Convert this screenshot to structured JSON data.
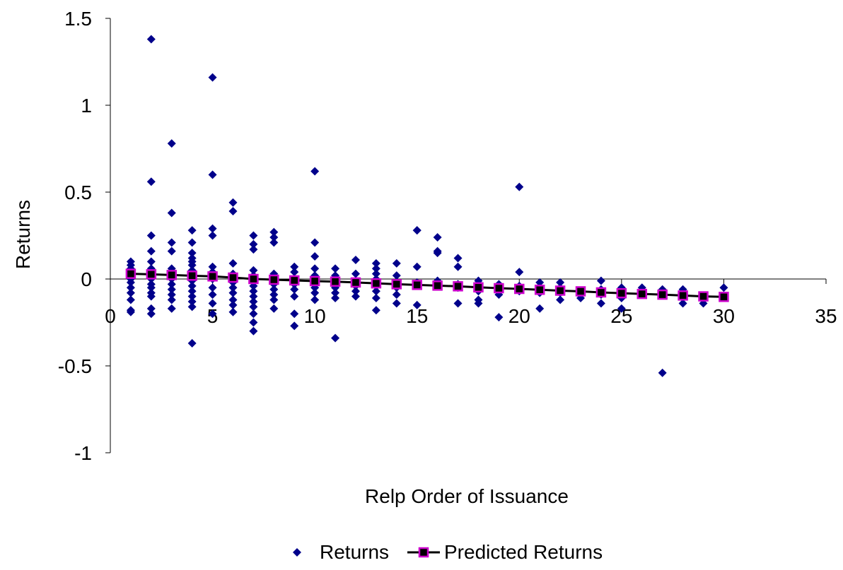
{
  "chart_data": {
    "type": "scatter",
    "title": "",
    "xlabel": "Relp Order of Issuance",
    "ylabel": "Returns",
    "xlim": [
      0,
      35
    ],
    "ylim": [
      -1,
      1.5
    ],
    "x_ticks": [
      0,
      5,
      10,
      15,
      20,
      25,
      30,
      35
    ],
    "y_ticks": [
      -1,
      -0.5,
      0,
      0.5,
      1,
      1.5
    ],
    "x_tick_labels": [
      "0",
      "5",
      "10",
      "15",
      "20",
      "25",
      "30",
      "35"
    ],
    "y_tick_labels": [
      "-1",
      "-0.5",
      "0",
      "0.5",
      "1",
      "1.5"
    ],
    "grid": false,
    "legend_position": "bottom",
    "legend": [
      "Returns",
      "Predicted Returns"
    ],
    "colors": {
      "scatter": "#00008B",
      "line": "#000000",
      "marker_border": "#CC00CC",
      "marker_fill": "#000000",
      "axis": "#000000"
    },
    "series": [
      {
        "name": "Returns",
        "type": "scatter",
        "marker": "diamond",
        "points": [
          [
            1,
            0.1
          ],
          [
            1,
            0.08
          ],
          [
            1,
            0.06
          ],
          [
            1,
            0.04
          ],
          [
            1,
            0.02
          ],
          [
            1,
            0.0
          ],
          [
            1,
            -0.02
          ],
          [
            1,
            -0.05
          ],
          [
            1,
            -0.08
          ],
          [
            1,
            -0.12
          ],
          [
            1,
            -0.18
          ],
          [
            1,
            -0.19
          ],
          [
            2,
            1.38
          ],
          [
            2,
            0.56
          ],
          [
            2,
            0.25
          ],
          [
            2,
            0.16
          ],
          [
            2,
            0.1
          ],
          [
            2,
            0.06
          ],
          [
            2,
            0.03
          ],
          [
            2,
            0.0
          ],
          [
            2,
            -0.03
          ],
          [
            2,
            -0.05
          ],
          [
            2,
            -0.08
          ],
          [
            2,
            -0.1
          ],
          [
            2,
            -0.17
          ],
          [
            2,
            -0.2
          ],
          [
            3,
            0.78
          ],
          [
            3,
            0.38
          ],
          [
            3,
            0.21
          ],
          [
            3,
            0.16
          ],
          [
            3,
            0.06
          ],
          [
            3,
            0.04
          ],
          [
            3,
            0.0
          ],
          [
            3,
            -0.03
          ],
          [
            3,
            -0.06
          ],
          [
            3,
            -0.09
          ],
          [
            3,
            -0.12
          ],
          [
            3,
            -0.17
          ],
          [
            4,
            0.28
          ],
          [
            4,
            0.21
          ],
          [
            4,
            0.15
          ],
          [
            4,
            0.12
          ],
          [
            4,
            0.1
          ],
          [
            4,
            0.08
          ],
          [
            4,
            0.05
          ],
          [
            4,
            0.02
          ],
          [
            4,
            -0.01
          ],
          [
            4,
            -0.04
          ],
          [
            4,
            -0.07
          ],
          [
            4,
            -0.1
          ],
          [
            4,
            -0.13
          ],
          [
            4,
            -0.16
          ],
          [
            4,
            -0.37
          ],
          [
            5,
            1.16
          ],
          [
            5,
            0.6
          ],
          [
            5,
            0.29
          ],
          [
            5,
            0.25
          ],
          [
            5,
            0.07
          ],
          [
            5,
            0.04
          ],
          [
            5,
            0.0
          ],
          [
            5,
            -0.05
          ],
          [
            5,
            -0.09
          ],
          [
            5,
            -0.14
          ],
          [
            5,
            -0.2
          ],
          [
            6,
            0.44
          ],
          [
            6,
            0.39
          ],
          [
            6,
            0.09
          ],
          [
            6,
            0.03
          ],
          [
            6,
            0.0
          ],
          [
            6,
            -0.02
          ],
          [
            6,
            -0.05
          ],
          [
            6,
            -0.08
          ],
          [
            6,
            -0.12
          ],
          [
            6,
            -0.15
          ],
          [
            6,
            -0.19
          ],
          [
            7,
            0.25
          ],
          [
            7,
            0.2
          ],
          [
            7,
            0.17
          ],
          [
            7,
            0.05
          ],
          [
            7,
            0.02
          ],
          [
            7,
            -0.01
          ],
          [
            7,
            -0.04
          ],
          [
            7,
            -0.07
          ],
          [
            7,
            -0.1
          ],
          [
            7,
            -0.13
          ],
          [
            7,
            -0.16
          ],
          [
            7,
            -0.2
          ],
          [
            7,
            -0.25
          ],
          [
            7,
            -0.3
          ],
          [
            8,
            0.27
          ],
          [
            8,
            0.24
          ],
          [
            8,
            0.21
          ],
          [
            8,
            0.03
          ],
          [
            8,
            0.0
          ],
          [
            8,
            -0.03
          ],
          [
            8,
            -0.06
          ],
          [
            8,
            -0.09
          ],
          [
            8,
            -0.12
          ],
          [
            8,
            -0.17
          ],
          [
            9,
            0.07
          ],
          [
            9,
            0.04
          ],
          [
            9,
            0.0
          ],
          [
            9,
            -0.03
          ],
          [
            9,
            -0.06
          ],
          [
            9,
            -0.1
          ],
          [
            9,
            -0.2
          ],
          [
            9,
            -0.27
          ],
          [
            10,
            0.62
          ],
          [
            10,
            0.21
          ],
          [
            10,
            0.13
          ],
          [
            10,
            0.06
          ],
          [
            10,
            0.02
          ],
          [
            10,
            -0.02
          ],
          [
            10,
            -0.05
          ],
          [
            10,
            -0.08
          ],
          [
            10,
            -0.12
          ],
          [
            11,
            0.06
          ],
          [
            11,
            0.02
          ],
          [
            11,
            -0.02
          ],
          [
            11,
            -0.05
          ],
          [
            11,
            -0.08
          ],
          [
            11,
            -0.11
          ],
          [
            11,
            -0.34
          ],
          [
            12,
            0.11
          ],
          [
            12,
            0.03
          ],
          [
            12,
            -0.01
          ],
          [
            12,
            -0.04
          ],
          [
            12,
            -0.07
          ],
          [
            12,
            -0.1
          ],
          [
            13,
            0.09
          ],
          [
            13,
            0.06
          ],
          [
            13,
            0.03
          ],
          [
            13,
            0.0
          ],
          [
            13,
            -0.04
          ],
          [
            13,
            -0.07
          ],
          [
            13,
            -0.11
          ],
          [
            13,
            -0.18
          ],
          [
            14,
            0.09
          ],
          [
            14,
            0.02
          ],
          [
            14,
            -0.02
          ],
          [
            14,
            -0.05
          ],
          [
            14,
            -0.09
          ],
          [
            14,
            -0.14
          ],
          [
            15,
            0.28
          ],
          [
            15,
            0.28
          ],
          [
            15,
            0.07
          ],
          [
            15,
            -0.02
          ],
          [
            15,
            -0.15
          ],
          [
            16,
            0.24
          ],
          [
            16,
            0.16
          ],
          [
            16,
            0.15
          ],
          [
            16,
            -0.01
          ],
          [
            16,
            -0.04
          ],
          [
            17,
            0.12
          ],
          [
            17,
            0.07
          ],
          [
            17,
            -0.03
          ],
          [
            17,
            -0.05
          ],
          [
            17,
            -0.14
          ],
          [
            18,
            -0.01
          ],
          [
            18,
            -0.04
          ],
          [
            18,
            -0.07
          ],
          [
            18,
            -0.12
          ],
          [
            18,
            -0.14
          ],
          [
            19,
            -0.03
          ],
          [
            19,
            -0.06
          ],
          [
            19,
            -0.09
          ],
          [
            19,
            -0.22
          ],
          [
            20,
            0.53
          ],
          [
            20,
            0.04
          ],
          [
            20,
            -0.04
          ],
          [
            20,
            -0.07
          ],
          [
            21,
            -0.02
          ],
          [
            21,
            -0.05
          ],
          [
            21,
            -0.08
          ],
          [
            21,
            -0.17
          ],
          [
            22,
            -0.02
          ],
          [
            22,
            -0.05
          ],
          [
            22,
            -0.08
          ],
          [
            22,
            -0.12
          ],
          [
            23,
            -0.08
          ],
          [
            23,
            -0.11
          ],
          [
            24,
            -0.01
          ],
          [
            24,
            -0.06
          ],
          [
            24,
            -0.09
          ],
          [
            24,
            -0.14
          ],
          [
            25,
            -0.05
          ],
          [
            25,
            -0.08
          ],
          [
            25,
            -0.11
          ],
          [
            25,
            -0.17
          ],
          [
            26,
            -0.05
          ],
          [
            26,
            -0.08
          ],
          [
            27,
            -0.06
          ],
          [
            27,
            -0.09
          ],
          [
            27,
            -0.54
          ],
          [
            28,
            -0.06
          ],
          [
            28,
            -0.1
          ],
          [
            28,
            -0.14
          ],
          [
            29,
            -0.1
          ],
          [
            29,
            -0.14
          ],
          [
            30,
            -0.05
          ],
          [
            30,
            -0.1
          ]
        ]
      },
      {
        "name": "Predicted Returns",
        "type": "line",
        "marker": "square",
        "x": [
          1,
          2,
          3,
          4,
          5,
          6,
          7,
          8,
          9,
          10,
          11,
          12,
          13,
          14,
          15,
          16,
          17,
          18,
          19,
          20,
          21,
          22,
          23,
          24,
          25,
          26,
          27,
          28,
          29,
          30
        ],
        "values": [
          0.03,
          0.027,
          0.023,
          0.019,
          0.015,
          0.008,
          0.0,
          -0.004,
          -0.008,
          -0.012,
          -0.015,
          -0.02,
          -0.025,
          -0.03,
          -0.034,
          -0.038,
          -0.042,
          -0.048,
          -0.053,
          -0.057,
          -0.062,
          -0.067,
          -0.071,
          -0.077,
          -0.082,
          -0.086,
          -0.09,
          -0.095,
          -0.1,
          -0.103
        ]
      }
    ]
  }
}
